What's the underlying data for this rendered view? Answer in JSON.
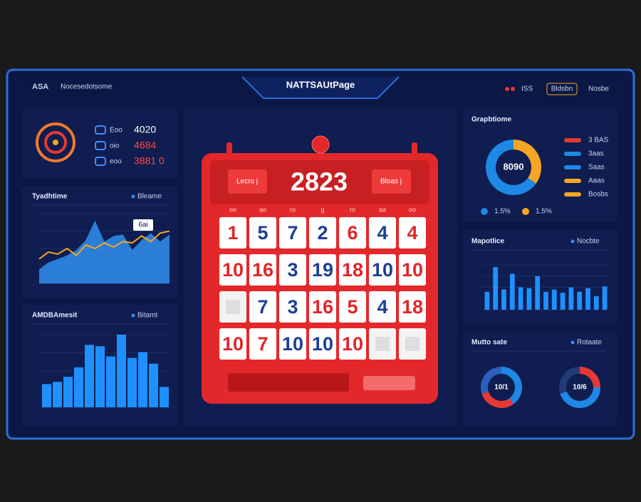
{
  "header": {
    "logo": "ASA",
    "subtitle": "Nocesedotsome",
    "title": "NATTSAUtPage",
    "actions": [
      "ISS",
      "Bldsbn",
      "Nosbe"
    ]
  },
  "stats": [
    {
      "label": "Eoo",
      "value": "4020",
      "color": "#ffffff"
    },
    {
      "label": "oio",
      "value": "4684",
      "color": "#ff4a3d"
    },
    {
      "label": "eoo",
      "value": "3881 0",
      "color": "#ff4a3d"
    }
  ],
  "trend": {
    "title": "Tyadhtime",
    "legend": "Bleame",
    "callout": "6ai",
    "ylim": [
      0,
      100
    ],
    "series": [
      {
        "color": "#2f8ff0",
        "values": [
          20,
          30,
          35,
          40,
          48,
          62,
          90,
          60,
          68,
          70,
          48,
          62,
          72,
          60,
          70
        ]
      },
      {
        "color": "#f5a623",
        "values": [
          35,
          45,
          42,
          50,
          40,
          55,
          50,
          58,
          52,
          60,
          58,
          68,
          60,
          72,
          75
        ]
      }
    ]
  },
  "histogram": {
    "title": "AMDBAmesit",
    "legend": "Bitamt",
    "color": "#1e90ff",
    "ylim": [
      0,
      100
    ],
    "values": [
      32,
      35,
      42,
      55,
      86,
      84,
      70,
      100,
      68,
      76,
      60,
      28
    ]
  },
  "calendar": {
    "prev": "Lecro j",
    "year": "2823",
    "next": "Bloas j",
    "weekdays": [
      "oo",
      "ao",
      "ro",
      "g",
      "ro",
      "aa",
      "oo"
    ],
    "rows": [
      [
        {
          "value": 1,
          "color": "#e0262a"
        },
        {
          "value": 5,
          "color": "#1c3f94"
        },
        {
          "value": 7,
          "color": "#1c3f94"
        },
        {
          "value": 2,
          "color": "#1c3f94"
        },
        {
          "value": 6,
          "color": "#e0262a"
        },
        {
          "value": 4,
          "color": "#1c3f94"
        },
        {
          "value": 4,
          "color": "#e0262a"
        }
      ],
      [
        {
          "value": 10,
          "color": "#e0262a"
        },
        {
          "value": 16,
          "color": "#e0262a"
        },
        {
          "value": 3,
          "color": "#1c3f94"
        },
        {
          "value": 19,
          "color": "#1c3f94"
        },
        {
          "value": 18,
          "color": "#e0262a"
        },
        {
          "value": 10,
          "color": "#1c3f94"
        },
        {
          "value": 10,
          "color": "#e0262a"
        }
      ],
      [
        null,
        {
          "value": 7,
          "color": "#1c3f94"
        },
        {
          "value": 3,
          "color": "#1c3f94"
        },
        {
          "value": 16,
          "color": "#e0262a"
        },
        {
          "value": 5,
          "color": "#e0262a"
        },
        {
          "value": 4,
          "color": "#1c3f94"
        },
        {
          "value": 18,
          "color": "#e0262a"
        }
      ],
      [
        {
          "value": 10,
          "color": "#e0262a"
        },
        {
          "value": 7,
          "color": "#e0262a"
        },
        {
          "value": 10,
          "color": "#1c3f94"
        },
        {
          "value": 10,
          "color": "#1c3f94"
        },
        {
          "value": 10,
          "color": "#e0262a"
        },
        null,
        null
      ]
    ]
  },
  "donut": {
    "title": "Grapbtiome",
    "center": "8090",
    "segments": [
      {
        "value": 35,
        "color": "#f5a623"
      },
      {
        "value": 65,
        "color": "#1e88e5"
      }
    ],
    "legend": [
      {
        "label": "3 BAS",
        "color": "#e53935"
      },
      {
        "label": "3aas",
        "color": "#1e88e5"
      },
      {
        "label": "Saas",
        "color": "#1e88e5"
      },
      {
        "label": "Aaas",
        "color": "#f5a623"
      },
      {
        "label": "Bosbs",
        "color": "#f5a623"
      }
    ],
    "footer": [
      {
        "label": "1.5%",
        "color": "#1e88e5"
      },
      {
        "label": "1.5%",
        "color": "#f5a623"
      }
    ]
  },
  "bars": {
    "title": "Mapotlice",
    "legend": "Nocbte",
    "color": "#1e90ff",
    "ylim": [
      0,
      100
    ],
    "values": [
      40,
      95,
      45,
      80,
      50,
      48,
      75,
      40,
      45,
      38,
      50,
      40,
      48,
      30,
      52
    ]
  },
  "rings": {
    "title": "Mutto sate",
    "legend": "Rotaate",
    "items": [
      {
        "center": "10/1",
        "segments": [
          {
            "value": 40,
            "color": "#1e88e5"
          },
          {
            "value": 30,
            "color": "#e53935"
          },
          {
            "value": 30,
            "color": "#2a5fbf"
          }
        ]
      },
      {
        "center": "10/6",
        "segments": [
          {
            "value": 25,
            "color": "#e53935"
          },
          {
            "value": 45,
            "color": "#1e88e5"
          },
          {
            "value": 30,
            "color": "#213a7a"
          }
        ]
      }
    ]
  }
}
